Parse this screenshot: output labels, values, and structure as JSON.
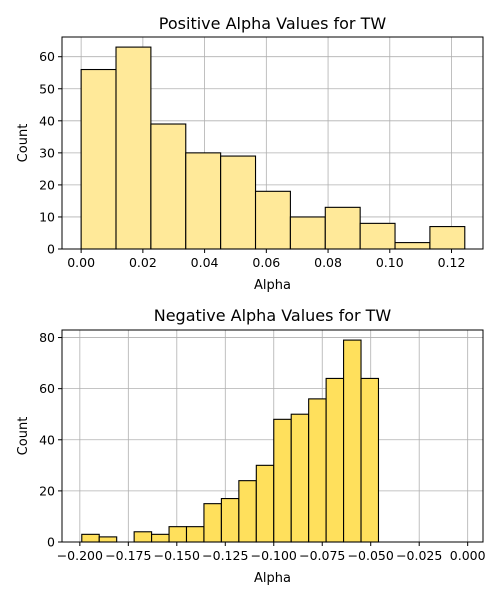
{
  "chart_data": [
    {
      "type": "bar",
      "title": "Positive Alpha Values for TW",
      "xlabel": "Alpha",
      "ylabel": "Count",
      "xlim": [
        -0.0062,
        0.1302
      ],
      "ylim": [
        0,
        66.15
      ],
      "grid": true,
      "bar_color": "#ffe999",
      "edge_color": "#000000",
      "bins": [
        {
          "x0": 0.0,
          "x1": 0.0113,
          "count": 56
        },
        {
          "x0": 0.0113,
          "x1": 0.0226,
          "count": 63
        },
        {
          "x0": 0.0226,
          "x1": 0.0339,
          "count": 39
        },
        {
          "x0": 0.0339,
          "x1": 0.0452,
          "count": 30
        },
        {
          "x0": 0.0452,
          "x1": 0.0565,
          "count": 29
        },
        {
          "x0": 0.0565,
          "x1": 0.0678,
          "count": 18
        },
        {
          "x0": 0.0678,
          "x1": 0.0791,
          "count": 10
        },
        {
          "x0": 0.0791,
          "x1": 0.0904,
          "count": 13
        },
        {
          "x0": 0.0904,
          "x1": 0.1017,
          "count": 8
        },
        {
          "x0": 0.1017,
          "x1": 0.113,
          "count": 2
        },
        {
          "x0": 0.113,
          "x1": 0.1243,
          "count": 7
        }
      ],
      "xticks": [
        0.0,
        0.02,
        0.04,
        0.06,
        0.08,
        0.1,
        0.12
      ],
      "xtick_labels": [
        "0.00",
        "0.02",
        "0.04",
        "0.06",
        "0.08",
        "0.10",
        "0.12"
      ],
      "yticks": [
        0,
        10,
        20,
        30,
        40,
        50,
        60
      ],
      "ytick_labels": [
        "0",
        "10",
        "20",
        "30",
        "40",
        "50",
        "60"
      ]
    },
    {
      "type": "bar",
      "title": "Negative Alpha Values for TW",
      "xlabel": "Alpha",
      "ylabel": "Count",
      "xlim": [
        -0.2092,
        0.0079
      ],
      "ylim": [
        0,
        82.95
      ],
      "grid": true,
      "bar_color": "#ffe05c",
      "edge_color": "#000000",
      "bins": [
        {
          "x0": -0.199,
          "x1": -0.19,
          "count": 3
        },
        {
          "x0": -0.19,
          "x1": -0.181,
          "count": 2
        },
        {
          "x0": -0.181,
          "x1": -0.172,
          "count": 0
        },
        {
          "x0": -0.172,
          "x1": -0.163,
          "count": 4
        },
        {
          "x0": -0.163,
          "x1": -0.154,
          "count": 3
        },
        {
          "x0": -0.154,
          "x1": -0.145,
          "count": 6
        },
        {
          "x0": -0.145,
          "x1": -0.136,
          "count": 6
        },
        {
          "x0": -0.136,
          "x1": -0.127,
          "count": 15
        },
        {
          "x0": -0.127,
          "x1": -0.118,
          "count": 17
        },
        {
          "x0": -0.118,
          "x1": -0.109,
          "count": 24
        },
        {
          "x0": -0.109,
          "x1": -0.1,
          "count": 30
        },
        {
          "x0": -0.1,
          "x1": -0.091,
          "count": 48
        },
        {
          "x0": -0.091,
          "x1": -0.082,
          "count": 50
        },
        {
          "x0": -0.082,
          "x1": -0.073,
          "count": 56
        },
        {
          "x0": -0.073,
          "x1": -0.064,
          "count": 64
        },
        {
          "x0": -0.064,
          "x1": -0.055,
          "count": 79
        },
        {
          "x0": -0.055,
          "x1": -0.046,
          "count": 64
        }
      ],
      "xticks": [
        -0.2,
        -0.175,
        -0.15,
        -0.125,
        -0.1,
        -0.075,
        -0.05,
        -0.025,
        0.0
      ],
      "xtick_labels": [
        "−0.200",
        "−0.175",
        "−0.150",
        "−0.125",
        "−0.100",
        "−0.075",
        "−0.050",
        "−0.025",
        "0.000"
      ],
      "yticks": [
        0,
        20,
        40,
        60,
        80
      ],
      "ytick_labels": [
        "0",
        "20",
        "40",
        "60",
        "80"
      ]
    }
  ]
}
